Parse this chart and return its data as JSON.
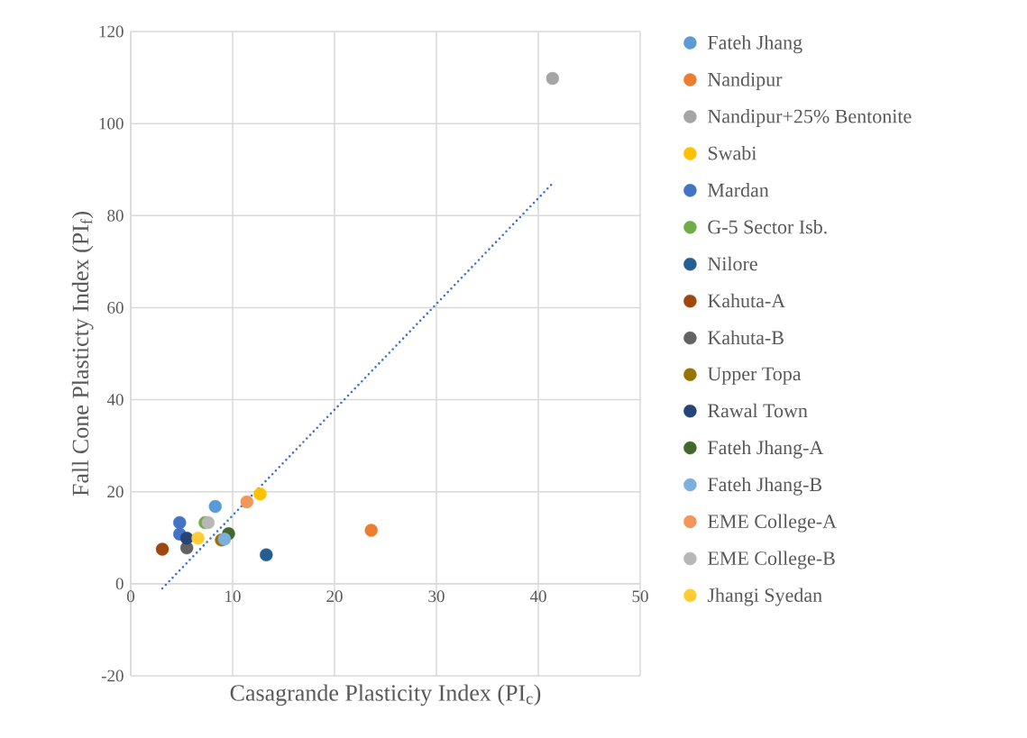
{
  "chart_data": {
    "type": "scatter",
    "xlabel": "Casagrande Plasticity Index (PI$_{c}$)",
    "ylabel": "Fall Cone Plasticty Index (PI$_{f}$)",
    "xlim": [
      0,
      50
    ],
    "ylim": [
      -20,
      120
    ],
    "xticks": [
      0,
      10,
      20,
      30,
      40,
      50
    ],
    "yticks": [
      -20,
      0,
      20,
      40,
      60,
      80,
      100,
      120
    ],
    "grid": true,
    "legend": "right",
    "marker": "circle",
    "series": [
      {
        "name": "Fateh Jhang",
        "color": "#5b9bd5",
        "x": [
          8.3
        ],
        "values": [
          16.8
        ]
      },
      {
        "name": "Nandipur",
        "color": "#ed7d31",
        "x": [
          23.6
        ],
        "values": [
          11.6
        ]
      },
      {
        "name": "Nandipur+25% Bentonite",
        "color": "#a5a5a5",
        "x": [
          41.4
        ],
        "values": [
          109.8
        ]
      },
      {
        "name": "Swabi",
        "color": "#ffc000",
        "x": [
          12.7
        ],
        "values": [
          19.5
        ]
      },
      {
        "name": "Mardan",
        "color": "#4472c4",
        "x": [
          4.8,
          4.8
        ],
        "values": [
          13.3,
          10.8
        ]
      },
      {
        "name": "G-5 Sector Isb.",
        "color": "#70ad47",
        "x": [
          7.3
        ],
        "values": [
          13.3
        ]
      },
      {
        "name": "Nilore",
        "color": "#255e91",
        "x": [
          13.3
        ],
        "values": [
          6.3
        ]
      },
      {
        "name": "Kahuta-A",
        "color": "#9e480e",
        "x": [
          3.1
        ],
        "values": [
          7.5
        ]
      },
      {
        "name": "Kahuta-B",
        "color": "#636363",
        "x": [
          5.5
        ],
        "values": [
          7.8
        ]
      },
      {
        "name": "Upper Topa",
        "color": "#997300",
        "x": [
          8.9
        ],
        "values": [
          9.5
        ]
      },
      {
        "name": "Rawal Town",
        "color": "#264478",
        "x": [
          5.5
        ],
        "values": [
          9.9
        ]
      },
      {
        "name": "Fateh Jhang-A",
        "color": "#43682b",
        "x": [
          9.6
        ],
        "values": [
          10.9
        ]
      },
      {
        "name": "Fateh Jhang-B",
        "color": "#7cafdd",
        "x": [
          9.2
        ],
        "values": [
          9.7
        ]
      },
      {
        "name": "EME College-A",
        "color": "#f1975a",
        "x": [
          11.4
        ],
        "values": [
          17.8
        ]
      },
      {
        "name": "EME College-B",
        "color": "#b7b7b7",
        "x": [
          7.6
        ],
        "values": [
          13.3
        ]
      },
      {
        "name": "Jhangi Syedan",
        "color": "#ffcd33",
        "x": [
          6.6
        ],
        "values": [
          9.9
        ]
      },
      {
        "type": "line",
        "line_style": "dotted",
        "marker": "none",
        "color": "#4472c4",
        "x": [
          3.1,
          41.4
        ],
        "values": [
          -1,
          87
        ]
      }
    ]
  }
}
